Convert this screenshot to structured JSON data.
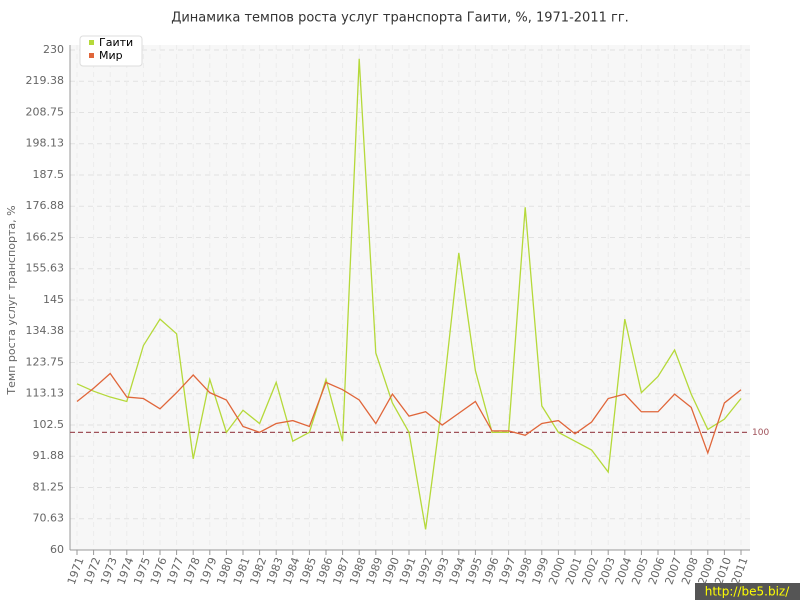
{
  "chart_data": {
    "type": "line",
    "title": "Динамика темпов роста услуг транспорта Гаити, %, 1971-2011 гг.",
    "y_label": "Темп роста услуг транспорта, %",
    "categories": [
      "1971",
      "1972",
      "1973",
      "1974",
      "1975",
      "1976",
      "1977",
      "1978",
      "1979",
      "1980",
      "1981",
      "1982",
      "1983",
      "1984",
      "1985",
      "1986",
      "1987",
      "1988",
      "1989",
      "1990",
      "1991",
      "1992",
      "1993",
      "1994",
      "1995",
      "1996",
      "1997",
      "1998",
      "1999",
      "2000",
      "2001",
      "2002",
      "2003",
      "2004",
      "2005",
      "2006",
      "2007",
      "2008",
      "2009",
      "2010",
      "2011"
    ],
    "series": [
      {
        "name": "Гаити",
        "color": "#b5d93a",
        "values": [
          116.5,
          114,
          112,
          110.5,
          129.5,
          138.5,
          133.5,
          91,
          118,
          100,
          107.5,
          103,
          117,
          97,
          100,
          118,
          97,
          227,
          127,
          110,
          100,
          67,
          110,
          161,
          121,
          100,
          100,
          176.5,
          109,
          100,
          97,
          94,
          86.5,
          138.5,
          113.5,
          119,
          128,
          113,
          101,
          104.5,
          111.5
        ]
      },
      {
        "name": "Мир",
        "color": "#e0663a",
        "values": [
          110.5,
          115,
          120,
          112,
          111.5,
          108,
          113.5,
          119.5,
          113.5,
          111,
          102,
          100,
          103,
          104,
          102,
          117,
          114.5,
          111,
          103,
          113,
          105.5,
          107,
          102.5,
          106.5,
          110.5,
          100.5,
          100.5,
          99,
          103,
          104,
          99.5,
          103.5,
          111.5,
          113,
          107,
          107,
          113,
          108.5,
          93,
          110,
          114.5
        ]
      }
    ],
    "ylim": [
      60,
      230
    ],
    "yticks": [
      60,
      70.63,
      81.25,
      91.88,
      102.5,
      113.13,
      123.75,
      134.38,
      145,
      155.63,
      166.25,
      176.88,
      187.5,
      198.13,
      208.75,
      219.38,
      230
    ],
    "grid": true,
    "legend": "top-left",
    "reference_line": {
      "value": 100,
      "color": "#a0525a"
    },
    "watermark": "http://be5.biz/"
  }
}
